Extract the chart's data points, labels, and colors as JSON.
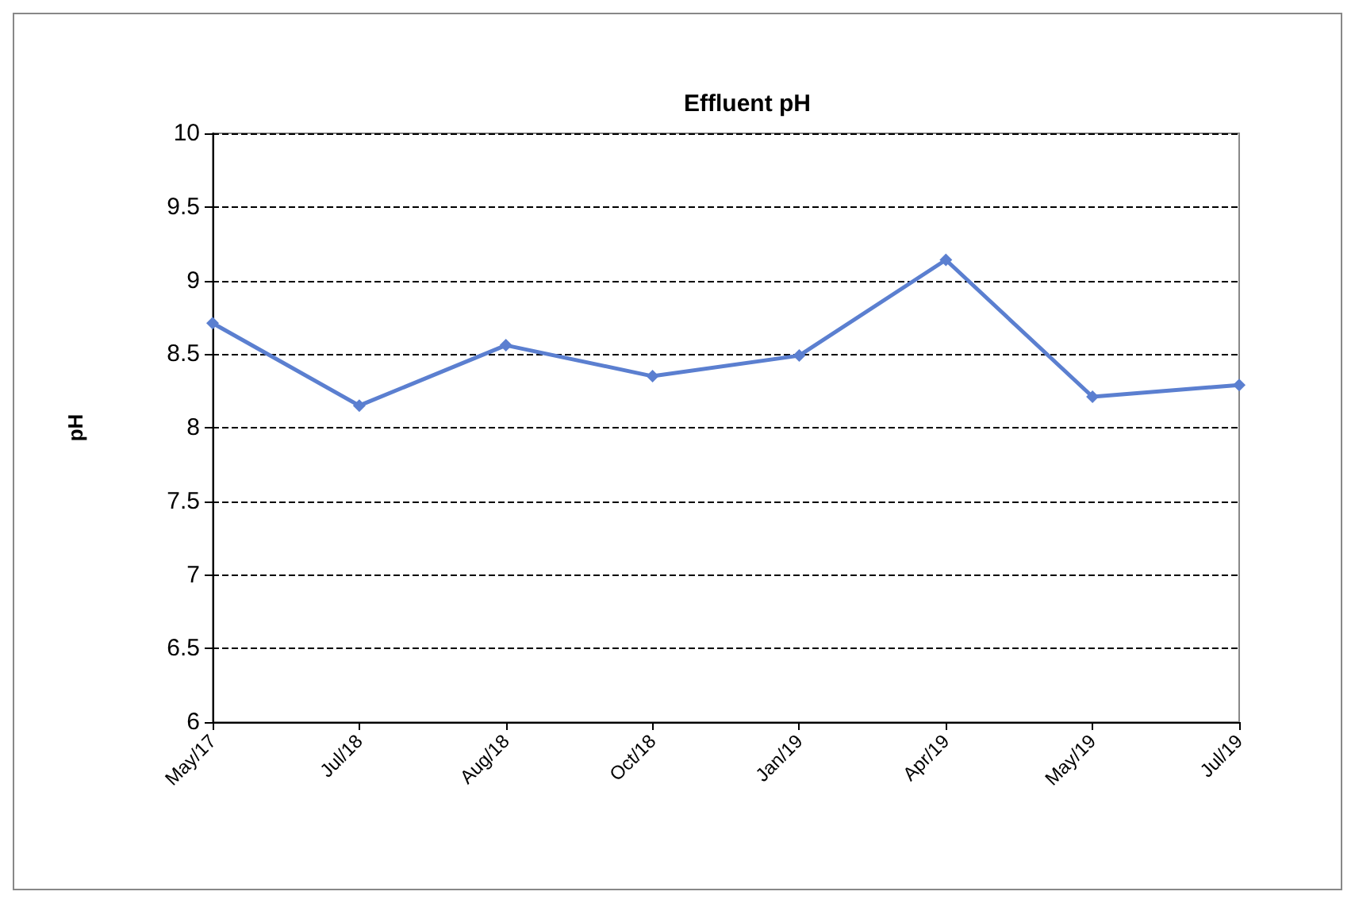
{
  "chart_data": {
    "type": "line",
    "title": "Effluent pH",
    "ylabel": "pH",
    "categories": [
      "May/17",
      "Jul/18",
      "Aug/18",
      "Oct/18",
      "Jan/19",
      "Apr/19",
      "May/19",
      "Jul/19"
    ],
    "series": [
      {
        "color": "#5b7fd0",
        "values": [
          8.71,
          8.15,
          8.56,
          8.35,
          8.49,
          9.14,
          8.21,
          8.29
        ]
      }
    ],
    "ylim": [
      6,
      10
    ],
    "yticks": [
      6,
      6.5,
      7,
      7.5,
      8,
      8.5,
      9,
      9.5,
      10
    ],
    "grid": "y",
    "marker": "diamond",
    "line_style": "solid"
  }
}
